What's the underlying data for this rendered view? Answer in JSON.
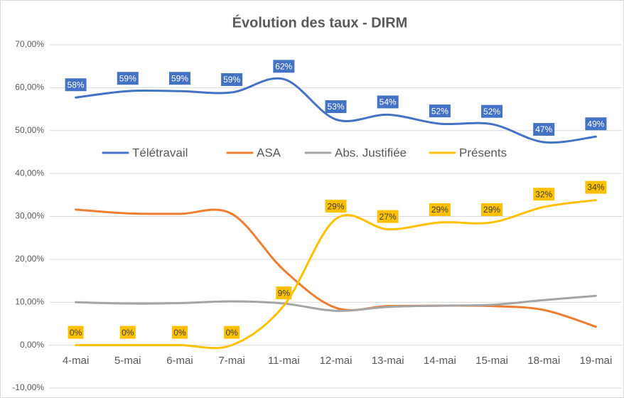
{
  "chart_data": {
    "type": "line",
    "title": "Évolution des taux - DIRM",
    "categories": [
      "4-mai",
      "5-mai",
      "6-mai",
      "7-mai",
      "11-mai",
      "12-mai",
      "13-mai",
      "14-mai",
      "15-mai",
      "18-mai",
      "19-mai"
    ],
    "series": [
      {
        "name": "Télétravail",
        "color": "#4472c4",
        "values": [
          57.7,
          59.2,
          59.2,
          58.9,
          62.0,
          52.6,
          53.7,
          51.6,
          51.5,
          47.3,
          48.6
        ],
        "value_labels": [
          "58%",
          "59%",
          "59%",
          "59%",
          "62%",
          "53%",
          "54%",
          "52%",
          "52%",
          "47%",
          "49%"
        ]
      },
      {
        "name": "ASA",
        "color": "#ed7d31",
        "values": [
          31.6,
          30.7,
          30.6,
          30.6,
          17.5,
          8.7,
          9.1,
          9.2,
          9.1,
          8.2,
          4.3
        ]
      },
      {
        "name": "Abs. Justifiée",
        "color": "#a5a5a5",
        "values": [
          10.0,
          9.7,
          9.8,
          10.2,
          9.7,
          8.0,
          8.9,
          9.2,
          9.4,
          10.5,
          11.5
        ]
      },
      {
        "name": "Présents",
        "color": "#ffc000",
        "values": [
          0,
          0,
          0,
          0,
          9.2,
          29.4,
          27.0,
          28.6,
          28.6,
          32.2,
          33.8
        ],
        "value_labels": [
          "0%",
          "0%",
          "0%",
          "0%",
          "9%",
          "29%",
          "27%",
          "29%",
          "29%",
          "32%",
          "34%"
        ]
      }
    ],
    "ylim": [
      -10,
      70
    ],
    "yticks": [
      {
        "value": -10,
        "label": "-10,00%"
      },
      {
        "value": 0,
        "label": "0,00%"
      },
      {
        "value": 10,
        "label": "10,00%"
      },
      {
        "value": 20,
        "label": "20,00%"
      },
      {
        "value": 30,
        "label": "30,00%"
      },
      {
        "value": 40,
        "label": "40,00%"
      },
      {
        "value": 50,
        "label": "50,00%"
      },
      {
        "value": 60,
        "label": "60,00%"
      },
      {
        "value": 70,
        "label": "70,00%"
      }
    ],
    "grid": true
  }
}
